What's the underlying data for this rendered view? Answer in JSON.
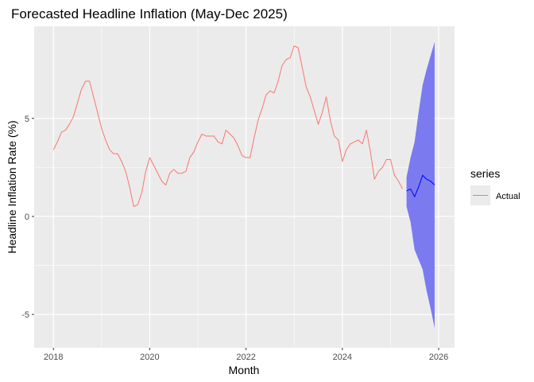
{
  "chart_data": {
    "type": "line",
    "title": "Forecasted Headline Inflation (May-Dec 2025)",
    "xlabel": "Month",
    "ylabel": "Headline Inflation Rate (%)",
    "xlim": [
      2017.6,
      2026.33
    ],
    "ylim": [
      -6.7,
      9.7
    ],
    "x_ticks": [
      2018,
      2020,
      2022,
      2024,
      2026
    ],
    "x_tick_labels": [
      "2018",
      "2020",
      "2022",
      "2024",
      "2026"
    ],
    "y_ticks": [
      -5,
      0,
      5
    ],
    "y_tick_labels": [
      "-5",
      "0",
      "5"
    ],
    "grid": true,
    "legend": {
      "title": "series",
      "position": "right",
      "entries": [
        "Actual"
      ]
    },
    "series": [
      {
        "name": "Actual",
        "color": "#f8766d",
        "x": [
          2018.0,
          2018.083,
          2018.167,
          2018.25,
          2018.333,
          2018.417,
          2018.5,
          2018.583,
          2018.667,
          2018.75,
          2018.833,
          2018.917,
          2019.0,
          2019.083,
          2019.167,
          2019.25,
          2019.333,
          2019.417,
          2019.5,
          2019.583,
          2019.667,
          2019.75,
          2019.833,
          2019.917,
          2020.0,
          2020.083,
          2020.167,
          2020.25,
          2020.333,
          2020.417,
          2020.5,
          2020.583,
          2020.667,
          2020.75,
          2020.833,
          2020.917,
          2021.0,
          2021.083,
          2021.167,
          2021.25,
          2021.333,
          2021.417,
          2021.5,
          2021.583,
          2021.667,
          2021.75,
          2021.833,
          2021.917,
          2022.0,
          2022.083,
          2022.167,
          2022.25,
          2022.333,
          2022.417,
          2022.5,
          2022.583,
          2022.667,
          2022.75,
          2022.833,
          2022.917,
          2023.0,
          2023.083,
          2023.167,
          2023.25,
          2023.333,
          2023.417,
          2023.5,
          2023.583,
          2023.667,
          2023.75,
          2023.833,
          2023.917,
          2024.0,
          2024.083,
          2024.167,
          2024.25,
          2024.333,
          2024.417,
          2024.5,
          2024.583,
          2024.667,
          2024.75,
          2024.833,
          2024.917,
          2025.0,
          2025.083,
          2025.167,
          2025.25
        ],
        "values": [
          3.4,
          3.8,
          4.3,
          4.4,
          4.7,
          5.1,
          5.8,
          6.5,
          6.9,
          6.9,
          6.1,
          5.3,
          4.5,
          3.9,
          3.4,
          3.2,
          3.2,
          2.8,
          2.3,
          1.5,
          0.5,
          0.6,
          1.2,
          2.3,
          3.0,
          2.6,
          2.2,
          1.8,
          1.6,
          2.2,
          2.4,
          2.2,
          2.2,
          2.3,
          3.0,
          3.3,
          3.8,
          4.2,
          4.1,
          4.1,
          4.1,
          3.8,
          3.7,
          4.4,
          4.2,
          4.0,
          3.6,
          3.1,
          3.0,
          3.0,
          4.0,
          4.9,
          5.5,
          6.2,
          6.4,
          6.3,
          6.9,
          7.7,
          8.0,
          8.1,
          8.7,
          8.6,
          7.6,
          6.6,
          6.1,
          5.4,
          4.7,
          5.3,
          6.1,
          4.9,
          4.1,
          3.9,
          2.8,
          3.4,
          3.7,
          3.8,
          3.9,
          3.7,
          4.4,
          3.3,
          1.9,
          2.3,
          2.5,
          2.9,
          2.9,
          2.1,
          1.8,
          1.4
        ]
      },
      {
        "color": "#0000ff",
        "x": [
          2025.333,
          2025.417,
          2025.5,
          2025.583,
          2025.667,
          2025.75,
          2025.833,
          2025.917
        ],
        "values": [
          1.3,
          1.4,
          1.0,
          1.5,
          2.1,
          1.9,
          1.8,
          1.6
        ],
        "band_upper": [
          2.0,
          3.0,
          3.8,
          5.3,
          6.7,
          7.5,
          8.2,
          8.9
        ],
        "band_lower": [
          0.5,
          -0.3,
          -1.7,
          -2.2,
          -2.7,
          -3.8,
          -4.7,
          -5.7
        ],
        "band_color": "#7b7bef"
      }
    ]
  },
  "colors": {
    "panel_bg": "#ebebeb",
    "grid": "#ffffff",
    "actual": "#f8766d",
    "forecast": "#0000ff",
    "band": "#7b7bef"
  }
}
